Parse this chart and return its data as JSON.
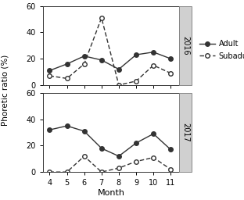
{
  "months": [
    4,
    5,
    6,
    7,
    8,
    9,
    10,
    11
  ],
  "adult_2016": [
    11,
    16,
    22,
    19,
    12,
    23,
    25,
    20
  ],
  "subadult_2016": [
    7,
    5,
    16,
    51,
    0,
    3,
    15,
    9
  ],
  "adult_2017": [
    32,
    35,
    31,
    18,
    12,
    22,
    29,
    17
  ],
  "subadult_2017": [
    0,
    0,
    12,
    0,
    3,
    8,
    11,
    2
  ],
  "ylabel": "Phoretic ratio (%)",
  "xlabel": "Month",
  "year_2016": "2016",
  "year_2017": "2017",
  "legend_adult": "Adult",
  "legend_subadult": "Subadult",
  "ylim": [
    0,
    60
  ],
  "yticks": [
    0,
    20,
    40,
    60
  ],
  "panel_label_color": "#d0d0d0",
  "line_color": "#333333",
  "adult_marker": "o",
  "subadult_marker": "o",
  "adult_markersize": 4,
  "subadult_markersize": 4
}
